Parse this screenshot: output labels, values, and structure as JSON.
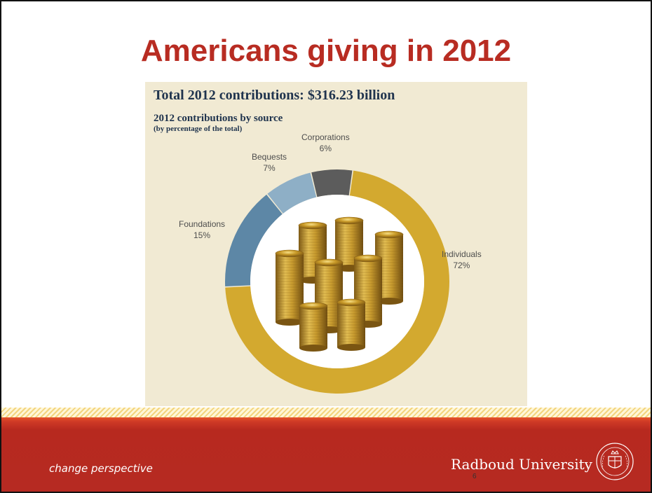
{
  "slide": {
    "title": "Americans giving in 2012",
    "page_number": "6"
  },
  "panel": {
    "heading": "Total 2012 contributions: $316.23 billion",
    "subheading": "2012 contributions by source",
    "note": "(by percentage of the total)"
  },
  "chart_data": {
    "type": "pie",
    "title": "Total 2012 contributions: $316.23 billion",
    "subtitle": "2012 contributions by source (by percentage of the total)",
    "categories": [
      "Individuals",
      "Foundations",
      "Bequests",
      "Corporations"
    ],
    "values": [
      72,
      15,
      7,
      6
    ],
    "value_labels": [
      "72%",
      "15%",
      "7%",
      "6%"
    ],
    "unit": "%",
    "colors": [
      "#d3a92f",
      "#5d87a6",
      "#8eafc6",
      "#5c5c5c"
    ],
    "center_image": "stacks of gold coins"
  },
  "footer": {
    "tagline": "change perspective",
    "university": "Radboud University",
    "colors": {
      "band": "#b62a22",
      "stripe": "#f3d57e"
    }
  }
}
